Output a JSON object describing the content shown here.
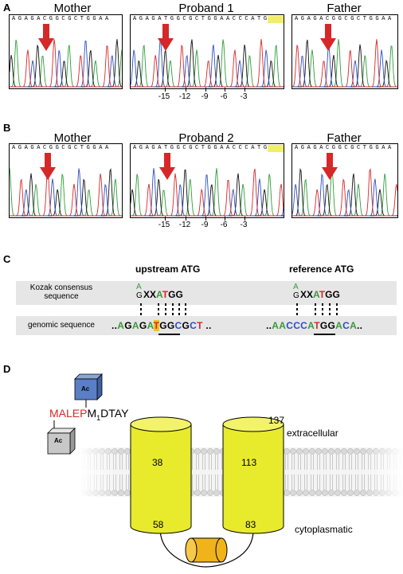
{
  "panels": {
    "A": {
      "letter": "A",
      "titles": [
        "Mother",
        "Proband 1",
        "Father"
      ],
      "sequences": [
        "AGAGACGGCGCTGGAA",
        "AGAGATGGCGCTGGAACCCATG",
        "AGAGACGGCGCTGGAA"
      ],
      "ticks": [
        "-15",
        "-12",
        "-9",
        "-6",
        "-3"
      ]
    },
    "B": {
      "letter": "B",
      "titles": [
        "Mother",
        "Proband 2",
        "Father"
      ],
      "sequences": [
        "AGAGACGGCGCTGGAA",
        "AGAGATGGCGCTGGAACCCATG",
        "AGAGACGGCGCTGGAA"
      ],
      "ticks": [
        "-15",
        "-12",
        "-9",
        "-6",
        "-3"
      ]
    },
    "C": {
      "letter": "C",
      "upstream_label": "upstream ATG",
      "reference_label": "reference ATG",
      "kozak_label_line1": "Kozak consensus",
      "kozak_label_line2": "sequence",
      "genomic_label": "genomic sequence",
      "kozak_top": "A",
      "kozak_bottom": "G",
      "kozak_xx": "XX",
      "kozak_atg": "AT",
      "kozak_gg": "GG",
      "genomic_left_dots": "..",
      "genomic_left": "AGAGATGGCGCT",
      "genomic_right": "AACCCATGGACA",
      "genomic_right_dots": ".."
    },
    "D": {
      "letter": "D",
      "ac_top": "Ac",
      "ac_bottom": "Ac",
      "seq_red": "MALEP",
      "seq_m": "M",
      "seq_sub": "1",
      "seq_rest": "DTAY",
      "label_137": "137",
      "extracellular": "extracellular",
      "cytoplasmatic": "cytoplasmatic",
      "helix1_top": "38",
      "helix1_bottom": "58",
      "helix2_top": "113",
      "helix2_bottom": "83",
      "colors": {
        "helix": "#e8ea2c",
        "loop_cyl": "#f0b31a",
        "ac_blue": "#5b7fc4",
        "ac_gray": "#c8c8c8",
        "red": "#d62828"
      }
    }
  }
}
